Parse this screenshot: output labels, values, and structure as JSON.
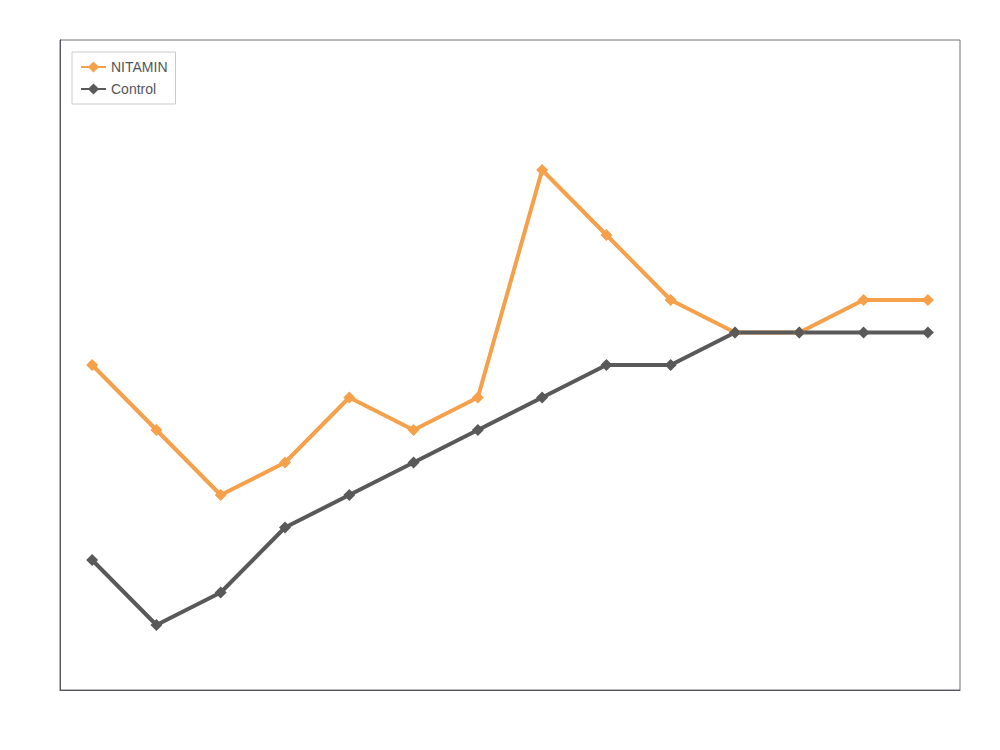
{
  "chart_data": {
    "type": "line",
    "x": [
      1,
      2,
      3,
      4,
      5,
      6,
      7,
      8,
      9,
      10,
      11,
      12,
      13,
      14
    ],
    "series": [
      {
        "name": "NITAMIN",
        "color": "#F5A04A",
        "marker": "diamond",
        "values": [
          42,
          40,
          38,
          39,
          41,
          40,
          41,
          48,
          46,
          44,
          43,
          43,
          44,
          44
        ]
      },
      {
        "name": "Control",
        "color": "#595959",
        "marker": "diamond",
        "values": [
          36,
          34,
          35,
          37,
          38,
          39,
          40,
          41,
          42,
          42,
          43,
          43,
          43,
          43
        ]
      }
    ],
    "xlim": [
      0.5,
      14.5
    ],
    "ylim": [
      32,
      52
    ],
    "tick_labels": false,
    "grid": false,
    "legend": "upper left"
  }
}
